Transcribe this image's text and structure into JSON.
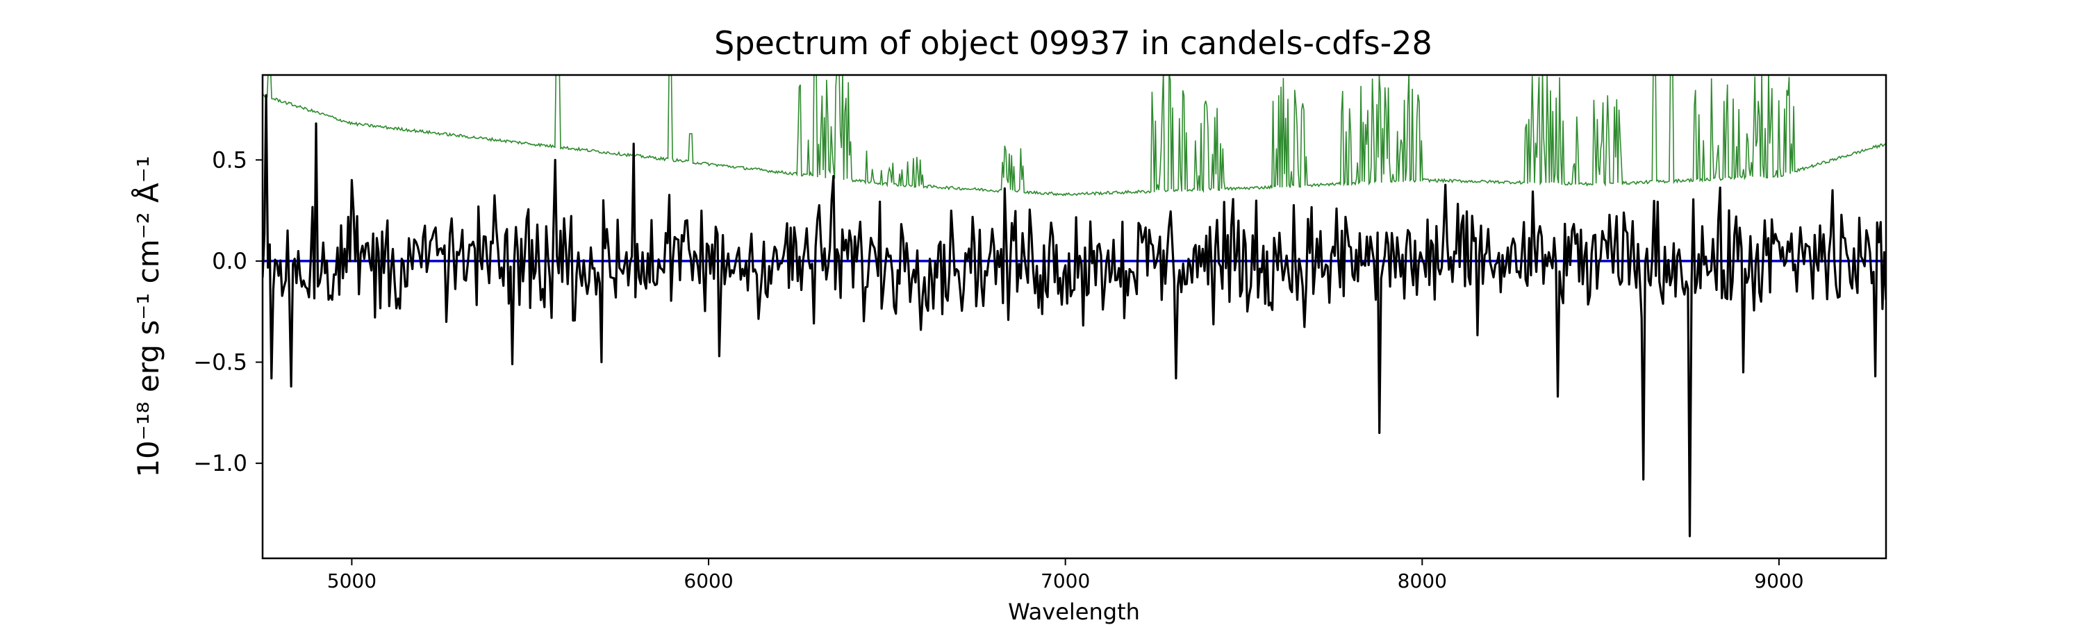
{
  "chart_data": {
    "type": "line",
    "title": "Spectrum of object 09937 in candels-cdfs-28",
    "xlabel": "Wavelength",
    "ylabel": "10⁻¹⁸ erg s⁻¹ cm⁻² Å⁻¹",
    "xlim": [
      4750,
      9300
    ],
    "ylim": [
      -1.47,
      0.92
    ],
    "x_ticks": [
      5000,
      6000,
      7000,
      8000,
      9000
    ],
    "y_ticks": [
      -1.0,
      -0.5,
      0.0,
      0.5
    ],
    "y_tick_labels": [
      "−1.0",
      "−0.5",
      "0.0",
      "0.5"
    ],
    "grid": false,
    "colors": {
      "flux": "#000000",
      "error": "#2e8b2e",
      "model": "#0000cc"
    },
    "series": [
      {
        "role": "flux",
        "noise_amplitude": 0.28,
        "features": [
          {
            "x": 4760,
            "y": 0.82
          },
          {
            "x": 4775,
            "y": -0.58
          },
          {
            "x": 4900,
            "y": 0.68
          },
          {
            "x": 4830,
            "y": -0.62
          },
          {
            "x": 5000,
            "y": 0.4
          },
          {
            "x": 5450,
            "y": -0.51
          },
          {
            "x": 5570,
            "y": 0.5
          },
          {
            "x": 5700,
            "y": -0.5
          },
          {
            "x": 5790,
            "y": 0.58
          },
          {
            "x": 6030,
            "y": -0.47
          },
          {
            "x": 6350,
            "y": 0.42
          },
          {
            "x": 7310,
            "y": -0.58
          },
          {
            "x": 7880,
            "y": -0.85
          },
          {
            "x": 8380,
            "y": -0.67
          },
          {
            "x": 8620,
            "y": -1.08
          },
          {
            "x": 8750,
            "y": -1.36
          },
          {
            "x": 8900,
            "y": -0.55
          },
          {
            "x": 9150,
            "y": 0.35
          },
          {
            "x": 9270,
            "y": -0.57
          }
        ]
      },
      {
        "role": "error",
        "continuum": [
          {
            "x": 4750,
            "y": 0.82
          },
          {
            "x": 5000,
            "y": 0.68
          },
          {
            "x": 5500,
            "y": 0.58
          },
          {
            "x": 6000,
            "y": 0.48
          },
          {
            "x": 6500,
            "y": 0.38
          },
          {
            "x": 7000,
            "y": 0.33
          },
          {
            "x": 7500,
            "y": 0.36
          },
          {
            "x": 8000,
            "y": 0.4
          },
          {
            "x": 8500,
            "y": 0.38
          },
          {
            "x": 9000,
            "y": 0.42
          },
          {
            "x": 9300,
            "y": 0.58
          }
        ],
        "emission_bands": [
          {
            "from": 6250,
            "to": 6400,
            "peak": 0.95
          },
          {
            "from": 6440,
            "to": 6600,
            "peak": 0.55
          },
          {
            "from": 6820,
            "to": 6900,
            "peak": 0.6
          },
          {
            "from": 7240,
            "to": 7350,
            "peak": 0.95
          },
          {
            "from": 7360,
            "to": 7450,
            "peak": 0.8
          },
          {
            "from": 7580,
            "to": 7700,
            "peak": 0.95
          },
          {
            "from": 7770,
            "to": 8000,
            "peak": 0.95
          },
          {
            "from": 8280,
            "to": 8440,
            "peak": 0.95
          },
          {
            "from": 8480,
            "to": 8560,
            "peak": 0.85
          },
          {
            "from": 8760,
            "to": 9050,
            "peak": 0.95
          }
        ],
        "isolated_lines": [
          {
            "x": 4770,
            "y": 0.95
          },
          {
            "x": 5577,
            "y": 0.95
          },
          {
            "x": 5892,
            "y": 0.95
          },
          {
            "x": 5950,
            "y": 0.63
          },
          {
            "x": 6300,
            "y": 0.95
          },
          {
            "x": 6363,
            "y": 0.95
          },
          {
            "x": 8650,
            "y": 0.95
          },
          {
            "x": 8700,
            "y": 0.95
          }
        ]
      },
      {
        "role": "model",
        "values": [
          {
            "x": 4750,
            "y": 0.0
          },
          {
            "x": 9300,
            "y": 0.0
          }
        ]
      }
    ]
  }
}
